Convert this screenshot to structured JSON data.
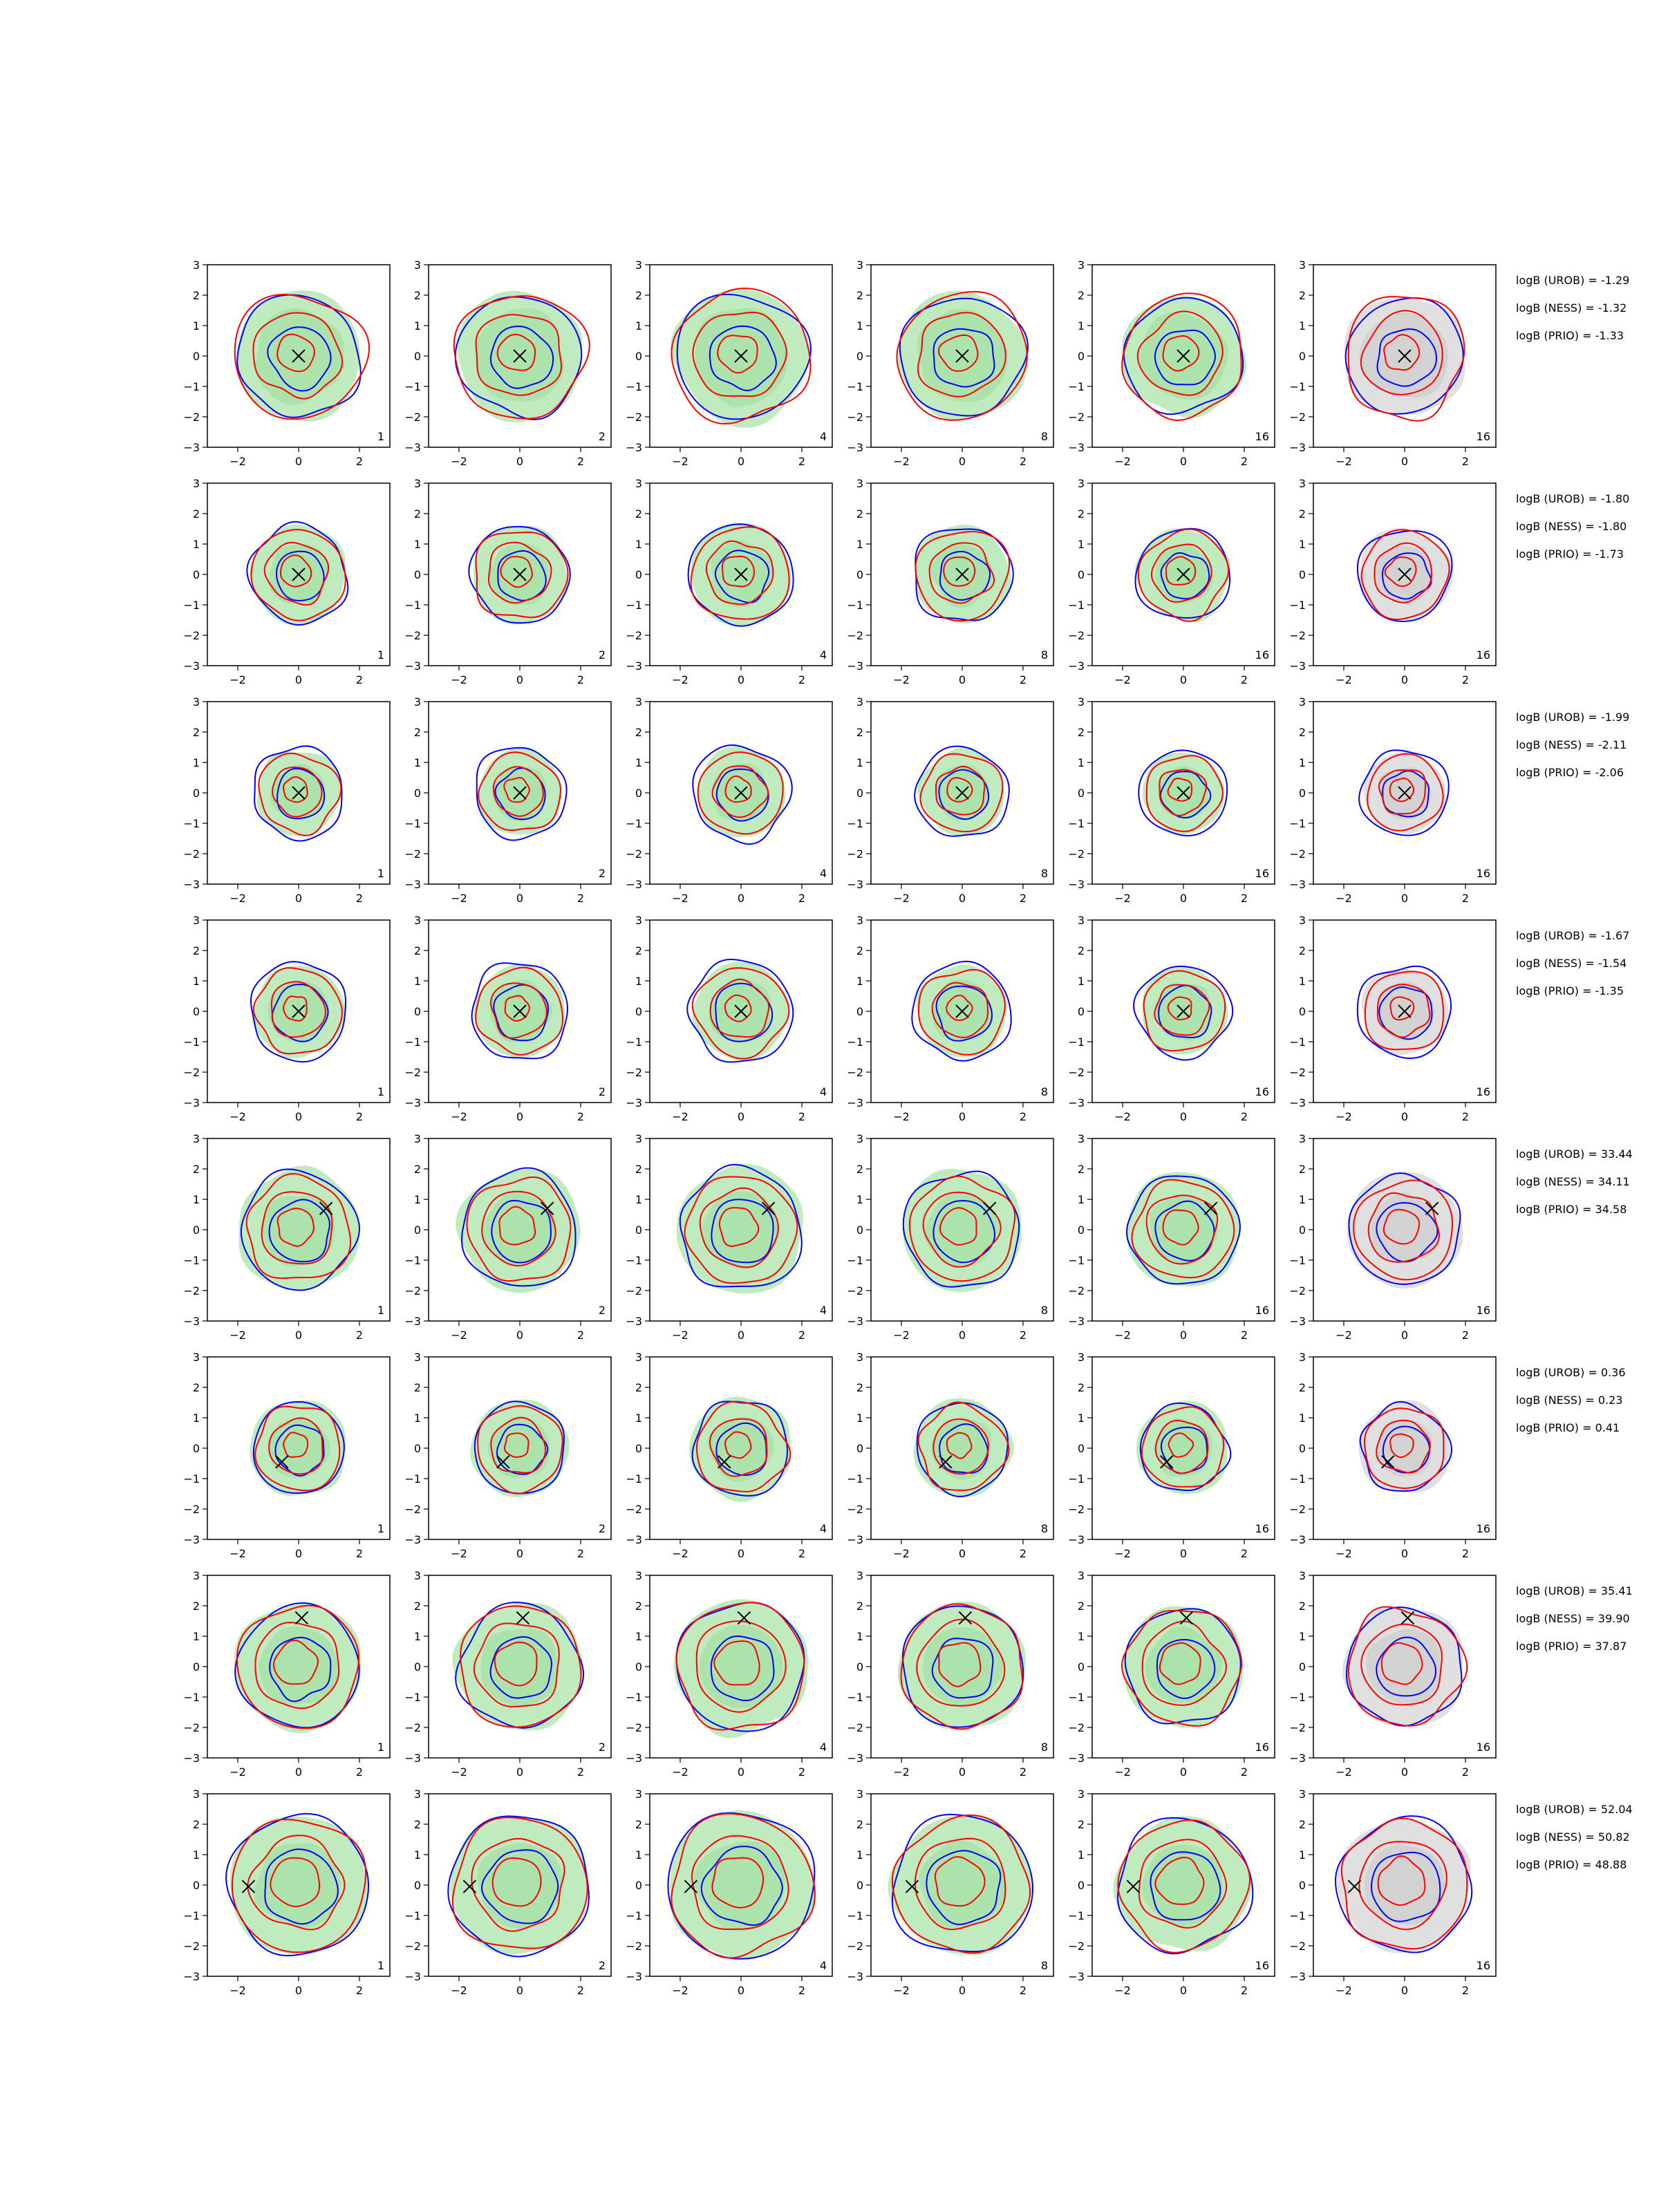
{
  "chart_data": {
    "type": "contour",
    "grid": false,
    "xlim": [
      -3,
      3
    ],
    "ylim": [
      -3,
      3
    ],
    "xticks": [
      -2,
      0,
      2
    ],
    "yticks": [
      -3,
      -2,
      -1,
      0,
      1,
      2,
      3
    ],
    "columns": [
      {
        "label": "1"
      },
      {
        "label": "2"
      },
      {
        "label": "4"
      },
      {
        "label": "8"
      },
      {
        "label": "16"
      },
      {
        "label": "16"
      }
    ],
    "colors": {
      "fill_green": "#b9e9b8",
      "fill_gray": "#dddddd",
      "contour_blue": "#0000ff",
      "contour_red": "#ff0000",
      "marker": "#000000"
    },
    "rows": [
      {
        "marker": [
          0.0,
          0.0
        ],
        "annotations": [
          "logB (UROB) = -1.29",
          "logB (NESS) = -1.32",
          "logB (PRIO) = -1.33"
        ]
      },
      {
        "marker": [
          0.0,
          0.0
        ],
        "annotations": [
          "logB (UROB) = -1.80",
          "logB (NESS) = -1.80",
          "logB (PRIO) = -1.73"
        ]
      },
      {
        "marker": [
          0.0,
          0.0
        ],
        "annotations": [
          "logB (UROB) = -1.99",
          "logB (NESS) = -2.11",
          "logB (PRIO) = -2.06"
        ]
      },
      {
        "marker": [
          0.0,
          0.0
        ],
        "annotations": [
          "logB (UROB) = -1.67",
          "logB (NESS) = -1.54",
          "logB (PRIO) = -1.35"
        ]
      },
      {
        "marker": [
          0.9,
          0.7
        ],
        "annotations": [
          "logB (UROB) = 33.44",
          "logB (NESS) = 34.11",
          "logB (PRIO) = 34.58"
        ]
      },
      {
        "marker": [
          -0.55,
          -0.45
        ],
        "annotations": [
          "logB (UROB) = 0.36",
          "logB (NESS) = 0.23",
          "logB (PRIO) = 0.41"
        ]
      },
      {
        "marker": [
          0.1,
          1.6
        ],
        "annotations": [
          "logB (UROB) = 35.41",
          "logB (NESS) = 39.90",
          "logB (PRIO) = 37.87"
        ]
      },
      {
        "marker": [
          -1.65,
          -0.05
        ],
        "annotations": [
          "logB (UROB) = 52.04",
          "logB (NESS) = 50.82",
          "logB (PRIO) = 48.88"
        ]
      }
    ]
  }
}
